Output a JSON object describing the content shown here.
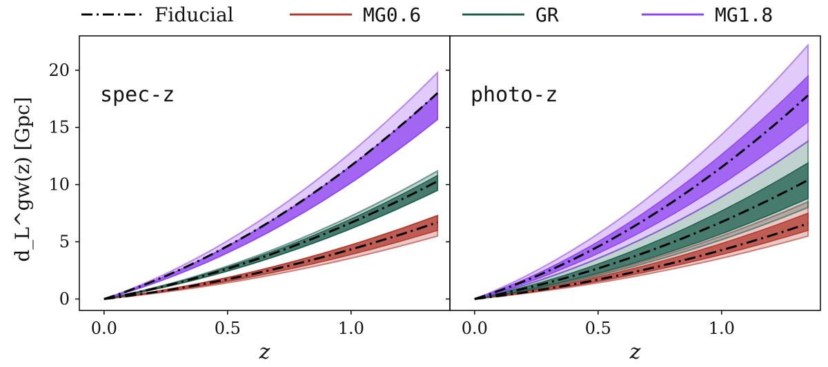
{
  "legend": [
    {
      "label": "Fiducial",
      "color": "#000000",
      "style": "dashdot",
      "mono": false
    },
    {
      "label": "MG0.6",
      "color": "#b03a2e",
      "style": "solid",
      "mono": true
    },
    {
      "label": "GR",
      "color": "#1e5e4e",
      "style": "solid",
      "mono": true
    },
    {
      "label": "MG1.8",
      "color": "#8e44f0",
      "style": "solid",
      "mono": true
    }
  ],
  "chart_data": [
    {
      "type": "line",
      "panel_label": "spec-z",
      "xlabel": "z",
      "ylabel": "d_L^gw(z) [Gpc]",
      "xlim": [
        -0.1,
        1.4
      ],
      "ylim": [
        -1,
        23
      ],
      "xticks": [
        "0.0",
        "0.5",
        "1.0"
      ],
      "yticks": [
        "0",
        "5",
        "10",
        "15",
        "20"
      ],
      "xtick_values": [
        0.0,
        0.5,
        1.0
      ],
      "ytick_values": [
        0,
        5,
        10,
        15,
        20
      ],
      "x_range": [
        0.0,
        1.35
      ],
      "series": [
        {
          "name": "MG0.6",
          "color": "#b03a2e",
          "fiducial_end": 6.7,
          "inner_band_end": [
            6.0,
            7.3
          ],
          "outer_band_end": [
            5.5,
            7.3
          ]
        },
        {
          "name": "GR",
          "color": "#1e5e4e",
          "fiducial_end": 10.3,
          "inner_band_end": [
            9.5,
            10.8
          ],
          "outer_band_end": [
            9.5,
            11.2
          ]
        },
        {
          "name": "MG1.8",
          "color": "#8e44f0",
          "fiducial_end": 18.0,
          "inner_band_end": [
            15.7,
            18.0
          ],
          "outer_band_end": [
            15.7,
            19.8
          ]
        }
      ]
    },
    {
      "type": "line",
      "panel_label": "photo-z",
      "xlabel": "z",
      "ylabel": "",
      "xlim": [
        -0.1,
        1.4
      ],
      "ylim": [
        -1,
        23
      ],
      "xticks": [
        "0.0",
        "0.5",
        "1.0"
      ],
      "yticks": [],
      "xtick_values": [
        0.0,
        0.5,
        1.0
      ],
      "ytick_values": [
        0,
        5,
        10,
        15,
        20
      ],
      "x_range": [
        0.0,
        1.35
      ],
      "series": [
        {
          "name": "MG0.6",
          "color": "#b03a2e",
          "fiducial_end": 6.6,
          "inner_band_end": [
            6.0,
            7.5
          ],
          "outer_band_end": [
            5.5,
            8.5
          ]
        },
        {
          "name": "GR",
          "color": "#1e5e4e",
          "fiducial_end": 10.4,
          "inner_band_end": [
            8.8,
            11.9
          ],
          "outer_band_end": [
            8.0,
            13.8
          ]
        },
        {
          "name": "MG1.8",
          "color": "#8e44f0",
          "fiducial_end": 17.8,
          "inner_band_end": [
            15.5,
            19.5
          ],
          "outer_band_end": [
            13.8,
            22.2
          ]
        }
      ]
    }
  ]
}
